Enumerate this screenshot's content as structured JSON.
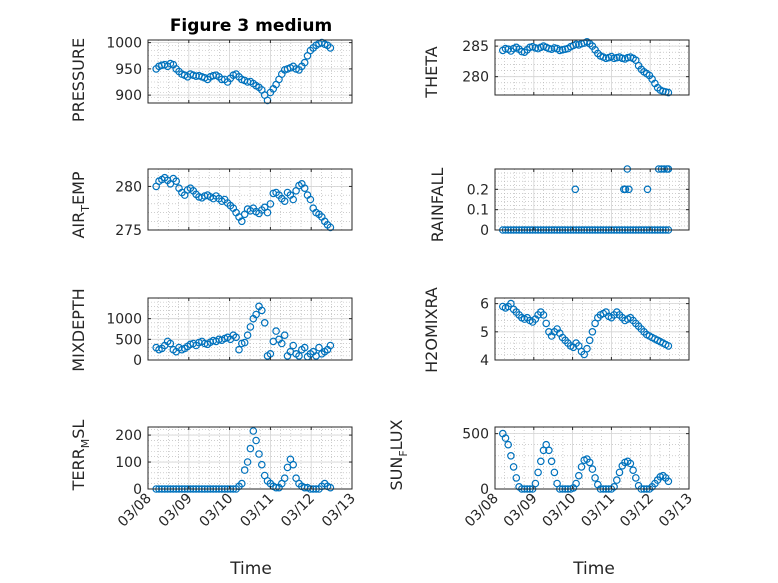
{
  "figure": {
    "title": "Figure 3 medium",
    "xlabel": "Time"
  },
  "colors": {
    "marker": "#0072BD",
    "axis": "#262626",
    "grid": "#b0b0b0"
  },
  "chart_data": [
    {
      "type": "scatter",
      "name": "pressure",
      "ylabel": "PRESSURE",
      "xlim": [
        0,
        5
      ],
      "ylim": [
        885,
        1005
      ],
      "yticks": [
        900,
        950,
        1000
      ],
      "ytick_labels": [
        "900",
        "950",
        "1000"
      ],
      "xticks": [
        0,
        1,
        2,
        3,
        4,
        5
      ],
      "show_xtick_labels": false,
      "x": [
        0.2,
        0.27,
        0.34,
        0.41,
        0.48,
        0.55,
        0.62,
        0.69,
        0.76,
        0.83,
        0.9,
        0.97,
        1.04,
        1.11,
        1.18,
        1.25,
        1.32,
        1.39,
        1.46,
        1.53,
        1.6,
        1.67,
        1.74,
        1.81,
        1.88,
        1.95,
        2.02,
        2.09,
        2.16,
        2.23,
        2.3,
        2.37,
        2.44,
        2.51,
        2.58,
        2.65,
        2.72,
        2.79,
        2.86,
        2.93,
        3.0,
        3.07,
        3.14,
        3.21,
        3.28,
        3.35,
        3.42,
        3.49,
        3.56,
        3.63,
        3.7,
        3.77,
        3.84,
        3.91,
        3.98,
        4.05,
        4.12,
        4.19,
        4.26,
        4.33,
        4.4,
        4.47
      ],
      "y": [
        950,
        955,
        957,
        958,
        955,
        960,
        958,
        950,
        945,
        940,
        938,
        935,
        940,
        938,
        936,
        937,
        935,
        933,
        930,
        935,
        937,
        938,
        935,
        930,
        930,
        925,
        932,
        938,
        940,
        935,
        930,
        928,
        925,
        926,
        922,
        918,
        915,
        910,
        900,
        890,
        905,
        912,
        920,
        930,
        940,
        948,
        950,
        952,
        955,
        950,
        948,
        955,
        962,
        975,
        985,
        990,
        995,
        998,
        1000,
        997,
        995,
        990
      ]
    },
    {
      "type": "scatter",
      "name": "theta",
      "ylabel": "THETA",
      "xlim": [
        0,
        5
      ],
      "ylim": [
        277,
        286
      ],
      "yticks": [
        280,
        285
      ],
      "ytick_labels": [
        "280",
        "285"
      ],
      "xticks": [
        0,
        1,
        2,
        3,
        4,
        5
      ],
      "show_xtick_labels": false,
      "x": [
        0.2,
        0.27,
        0.34,
        0.41,
        0.48,
        0.55,
        0.62,
        0.69,
        0.76,
        0.83,
        0.9,
        0.97,
        1.04,
        1.11,
        1.18,
        1.25,
        1.32,
        1.39,
        1.46,
        1.53,
        1.6,
        1.67,
        1.74,
        1.81,
        1.88,
        1.95,
        2.02,
        2.09,
        2.16,
        2.23,
        2.3,
        2.37,
        2.44,
        2.51,
        2.58,
        2.65,
        2.72,
        2.79,
        2.86,
        2.93,
        3.0,
        3.07,
        3.14,
        3.21,
        3.28,
        3.35,
        3.42,
        3.49,
        3.56,
        3.63,
        3.7,
        3.77,
        3.84,
        3.91,
        3.98,
        4.05,
        4.12,
        4.19,
        4.26,
        4.33,
        4.4,
        4.47
      ],
      "y": [
        284.3,
        284.6,
        284.5,
        284.2,
        284.6,
        284.8,
        284.5,
        284.1,
        284.0,
        284.4,
        284.8,
        284.9,
        284.7,
        284.6,
        284.8,
        285.0,
        284.8,
        284.6,
        284.5,
        284.7,
        284.6,
        284.3,
        284.4,
        284.5,
        284.6,
        284.9,
        285.1,
        285.3,
        285.2,
        285.4,
        285.5,
        285.7,
        285.4,
        285.0,
        284.4,
        283.8,
        283.4,
        283.2,
        283.0,
        283.1,
        283.3,
        283.0,
        283.1,
        283.2,
        283.0,
        282.9,
        283.1,
        283.2,
        283.0,
        282.7,
        281.8,
        281.2,
        280.8,
        280.5,
        280.2,
        279.6,
        278.9,
        278.2,
        277.8,
        277.6,
        277.5,
        277.4
      ]
    },
    {
      "type": "scatter",
      "name": "air_temp",
      "ylabel": "AIR_TEMP",
      "xlim": [
        0,
        5
      ],
      "ylim": [
        275,
        282
      ],
      "yticks": [
        275,
        280
      ],
      "ytick_labels": [
        "275",
        "280"
      ],
      "xticks": [
        0,
        1,
        2,
        3,
        4,
        5
      ],
      "show_xtick_labels": false,
      "x": [
        0.2,
        0.27,
        0.34,
        0.41,
        0.48,
        0.55,
        0.62,
        0.69,
        0.76,
        0.83,
        0.9,
        0.97,
        1.04,
        1.11,
        1.18,
        1.25,
        1.32,
        1.39,
        1.46,
        1.53,
        1.6,
        1.67,
        1.74,
        1.81,
        1.88,
        1.95,
        2.02,
        2.09,
        2.16,
        2.23,
        2.3,
        2.37,
        2.44,
        2.51,
        2.58,
        2.65,
        2.72,
        2.79,
        2.86,
        2.93,
        3.0,
        3.07,
        3.14,
        3.21,
        3.28,
        3.35,
        3.42,
        3.49,
        3.56,
        3.63,
        3.7,
        3.77,
        3.84,
        3.91,
        3.98,
        4.05,
        4.12,
        4.19,
        4.26,
        4.33,
        4.4,
        4.47
      ],
      "y": [
        280.0,
        280.6,
        280.8,
        281.0,
        280.7,
        280.3,
        280.9,
        280.6,
        279.8,
        279.3,
        279.0,
        279.6,
        279.8,
        279.5,
        279.1,
        278.8,
        278.7,
        278.9,
        279.0,
        278.8,
        278.6,
        278.9,
        278.6,
        278.3,
        278.5,
        278.1,
        277.8,
        277.5,
        277.0,
        276.5,
        276.0,
        276.8,
        277.4,
        277.2,
        277.5,
        277.1,
        276.9,
        277.3,
        277.6,
        277.0,
        278.0,
        279.2,
        279.3,
        279.0,
        278.6,
        278.3,
        279.3,
        279.0,
        278.5,
        279.5,
        280.1,
        280.3,
        279.8,
        279.0,
        278.5,
        277.5,
        277.0,
        276.8,
        276.5,
        276.0,
        275.6,
        275.3
      ]
    },
    {
      "type": "scatter",
      "name": "rainfall",
      "ylabel": "RAINFALL",
      "xlim": [
        0,
        5
      ],
      "ylim": [
        0,
        0.3
      ],
      "yticks": [
        0,
        0.1,
        0.2
      ],
      "ytick_labels": [
        "0",
        "0.1",
        "0.2"
      ],
      "xticks": [
        0,
        1,
        2,
        3,
        4,
        5
      ],
      "show_xtick_labels": false,
      "x": [
        0.2,
        0.27,
        0.34,
        0.41,
        0.48,
        0.55,
        0.62,
        0.69,
        0.76,
        0.83,
        0.9,
        0.97,
        1.04,
        1.11,
        1.18,
        1.25,
        1.32,
        1.39,
        1.46,
        1.53,
        1.6,
        1.67,
        1.74,
        1.81,
        1.88,
        1.95,
        2.02,
        2.09,
        2.16,
        2.23,
        2.3,
        2.37,
        2.44,
        2.51,
        2.58,
        2.65,
        2.72,
        2.79,
        2.86,
        2.93,
        3.0,
        3.07,
        3.14,
        3.21,
        3.28,
        3.35,
        3.42,
        3.49,
        3.56,
        3.63,
        3.7,
        3.77,
        3.84,
        3.91,
        3.98,
        4.05,
        4.12,
        4.19,
        4.26,
        4.33,
        4.4,
        4.47,
        2.07,
        3.32,
        3.36,
        3.41,
        3.45,
        3.93,
        4.22,
        4.29,
        4.36,
        4.43,
        4.47
      ],
      "y": [
        0,
        0,
        0,
        0,
        0,
        0,
        0,
        0,
        0,
        0,
        0,
        0,
        0,
        0,
        0,
        0,
        0,
        0,
        0,
        0,
        0,
        0,
        0,
        0,
        0,
        0,
        0,
        0,
        0,
        0,
        0,
        0,
        0,
        0,
        0,
        0,
        0,
        0,
        0,
        0,
        0,
        0,
        0,
        0,
        0,
        0,
        0,
        0,
        0,
        0,
        0,
        0,
        0,
        0,
        0,
        0,
        0,
        0,
        0,
        0,
        0,
        0,
        0.2,
        0.2,
        0.2,
        0.3,
        0.2,
        0.2,
        0.3,
        0.3,
        0.3,
        0.3,
        0.3
      ]
    },
    {
      "type": "scatter",
      "name": "mixdepth",
      "ylabel": "MIXDEPTH",
      "xlim": [
        0,
        5
      ],
      "ylim": [
        0,
        1500
      ],
      "yticks": [
        0,
        500,
        1000
      ],
      "ytick_labels": [
        "0",
        "500",
        "1000"
      ],
      "xticks": [
        0,
        1,
        2,
        3,
        4,
        5
      ],
      "show_xtick_labels": false,
      "x": [
        0.2,
        0.27,
        0.34,
        0.41,
        0.48,
        0.55,
        0.62,
        0.69,
        0.76,
        0.83,
        0.9,
        0.97,
        1.04,
        1.11,
        1.18,
        1.25,
        1.32,
        1.39,
        1.46,
        1.53,
        1.6,
        1.67,
        1.74,
        1.81,
        1.88,
        1.95,
        2.02,
        2.09,
        2.16,
        2.23,
        2.3,
        2.37,
        2.44,
        2.51,
        2.58,
        2.65,
        2.72,
        2.79,
        2.86,
        2.93,
        3.0,
        3.07,
        3.14,
        3.21,
        3.28,
        3.35,
        3.42,
        3.49,
        3.56,
        3.63,
        3.7,
        3.77,
        3.84,
        3.91,
        3.98,
        4.05,
        4.12,
        4.19,
        4.26,
        4.33,
        4.4,
        4.47
      ],
      "y": [
        300,
        250,
        280,
        350,
        450,
        400,
        250,
        200,
        300,
        250,
        280,
        330,
        380,
        400,
        350,
        420,
        450,
        400,
        380,
        430,
        470,
        450,
        500,
        480,
        520,
        550,
        500,
        600,
        550,
        250,
        400,
        420,
        600,
        800,
        1000,
        1100,
        1300,
        1200,
        900,
        100,
        150,
        450,
        700,
        500,
        400,
        600,
        100,
        200,
        350,
        150,
        100,
        250,
        300,
        80,
        150,
        200,
        100,
        300,
        150,
        200,
        250,
        350
      ]
    },
    {
      "type": "scatter",
      "name": "h2omixra",
      "ylabel": "H2OMIXRA",
      "xlim": [
        0,
        5
      ],
      "ylim": [
        4,
        6.2
      ],
      "yticks": [
        4,
        5,
        6
      ],
      "ytick_labels": [
        "4",
        "5",
        "6"
      ],
      "xticks": [
        0,
        1,
        2,
        3,
        4,
        5
      ],
      "show_xtick_labels": false,
      "x": [
        0.2,
        0.27,
        0.34,
        0.41,
        0.48,
        0.55,
        0.62,
        0.69,
        0.76,
        0.83,
        0.9,
        0.97,
        1.04,
        1.11,
        1.18,
        1.25,
        1.32,
        1.39,
        1.46,
        1.53,
        1.6,
        1.67,
        1.74,
        1.81,
        1.88,
        1.95,
        2.02,
        2.09,
        2.16,
        2.23,
        2.3,
        2.37,
        2.44,
        2.51,
        2.58,
        2.65,
        2.72,
        2.79,
        2.86,
        2.93,
        3.0,
        3.07,
        3.14,
        3.21,
        3.28,
        3.35,
        3.42,
        3.49,
        3.56,
        3.63,
        3.7,
        3.77,
        3.84,
        3.91,
        3.98,
        4.05,
        4.12,
        4.19,
        4.26,
        4.33,
        4.4,
        4.47
      ],
      "y": [
        5.9,
        5.85,
        5.9,
        6.0,
        5.8,
        5.7,
        5.6,
        5.5,
        5.45,
        5.5,
        5.4,
        5.35,
        5.45,
        5.6,
        5.7,
        5.6,
        5.3,
        5.0,
        4.85,
        5.0,
        5.1,
        4.95,
        4.8,
        4.7,
        4.6,
        4.5,
        4.45,
        4.6,
        4.5,
        4.3,
        4.2,
        4.4,
        4.7,
        5.0,
        5.3,
        5.5,
        5.6,
        5.65,
        5.7,
        5.55,
        5.5,
        5.6,
        5.7,
        5.6,
        5.5,
        5.4,
        5.45,
        5.5,
        5.4,
        5.3,
        5.2,
        5.1,
        5.0,
        4.9,
        4.85,
        4.8,
        4.75,
        4.7,
        4.65,
        4.6,
        4.55,
        4.5
      ]
    },
    {
      "type": "scatter",
      "name": "terr_msl",
      "ylabel": "TERR_MSL",
      "xlim": [
        0,
        5
      ],
      "ylim": [
        0,
        230
      ],
      "yticks": [
        0,
        100,
        200
      ],
      "ytick_labels": [
        "0",
        "100",
        "200"
      ],
      "xticks": [
        0,
        1,
        2,
        3,
        4,
        5
      ],
      "show_xtick_labels": true,
      "xtick_labels": [
        "03/08",
        "03/09",
        "03/10",
        "03/11",
        "03/12",
        "03/13"
      ],
      "x": [
        0.2,
        0.27,
        0.34,
        0.41,
        0.48,
        0.55,
        0.62,
        0.69,
        0.76,
        0.83,
        0.9,
        0.97,
        1.04,
        1.11,
        1.18,
        1.25,
        1.32,
        1.39,
        1.46,
        1.53,
        1.6,
        1.67,
        1.74,
        1.81,
        1.88,
        1.95,
        2.02,
        2.09,
        2.16,
        2.23,
        2.3,
        2.37,
        2.44,
        2.51,
        2.58,
        2.65,
        2.72,
        2.79,
        2.86,
        2.93,
        3.0,
        3.07,
        3.14,
        3.21,
        3.28,
        3.35,
        3.42,
        3.49,
        3.56,
        3.63,
        3.7,
        3.77,
        3.84,
        3.91,
        3.98,
        4.05,
        4.12,
        4.19,
        4.26,
        4.33,
        4.4,
        4.47
      ],
      "y": [
        0,
        0,
        0,
        0,
        0,
        0,
        0,
        0,
        0,
        0,
        0,
        0,
        0,
        0,
        0,
        0,
        0,
        0,
        0,
        0,
        0,
        0,
        0,
        0,
        0,
        0,
        0,
        0,
        0,
        10,
        20,
        70,
        100,
        150,
        215,
        180,
        130,
        90,
        50,
        30,
        20,
        10,
        5,
        5,
        20,
        40,
        80,
        110,
        90,
        40,
        20,
        10,
        5,
        5,
        0,
        0,
        0,
        0,
        10,
        20,
        10,
        5
      ]
    },
    {
      "type": "scatter",
      "name": "sun_flux",
      "ylabel": "SUN_FLUX",
      "xlim": [
        0,
        5
      ],
      "ylim": [
        0,
        560
      ],
      "yticks": [
        0,
        500
      ],
      "ytick_labels": [
        "0",
        "500"
      ],
      "xticks": [
        0,
        1,
        2,
        3,
        4,
        5
      ],
      "show_xtick_labels": true,
      "xtick_labels": [
        "03/08",
        "03/09",
        "03/10",
        "03/11",
        "03/12",
        "03/13"
      ],
      "x": [
        0.2,
        0.27,
        0.34,
        0.41,
        0.48,
        0.55,
        0.62,
        0.69,
        0.76,
        0.83,
        0.9,
        0.97,
        1.04,
        1.11,
        1.18,
        1.25,
        1.32,
        1.39,
        1.46,
        1.53,
        1.6,
        1.67,
        1.74,
        1.81,
        1.88,
        1.95,
        2.02,
        2.09,
        2.16,
        2.23,
        2.3,
        2.37,
        2.44,
        2.51,
        2.58,
        2.65,
        2.72,
        2.79,
        2.86,
        2.93,
        3.0,
        3.07,
        3.14,
        3.21,
        3.28,
        3.35,
        3.42,
        3.49,
        3.56,
        3.63,
        3.7,
        3.77,
        3.84,
        3.91,
        3.98,
        4.05,
        4.12,
        4.19,
        4.26,
        4.33,
        4.4,
        4.47
      ],
      "y": [
        500,
        460,
        400,
        300,
        200,
        100,
        20,
        0,
        0,
        0,
        0,
        0,
        50,
        150,
        250,
        350,
        400,
        350,
        250,
        150,
        50,
        0,
        0,
        0,
        0,
        0,
        10,
        50,
        120,
        200,
        260,
        270,
        240,
        180,
        100,
        40,
        0,
        0,
        0,
        0,
        0,
        20,
        80,
        150,
        210,
        240,
        250,
        230,
        170,
        100,
        30,
        0,
        0,
        0,
        0,
        20,
        50,
        80,
        110,
        120,
        100,
        70
      ]
    }
  ]
}
